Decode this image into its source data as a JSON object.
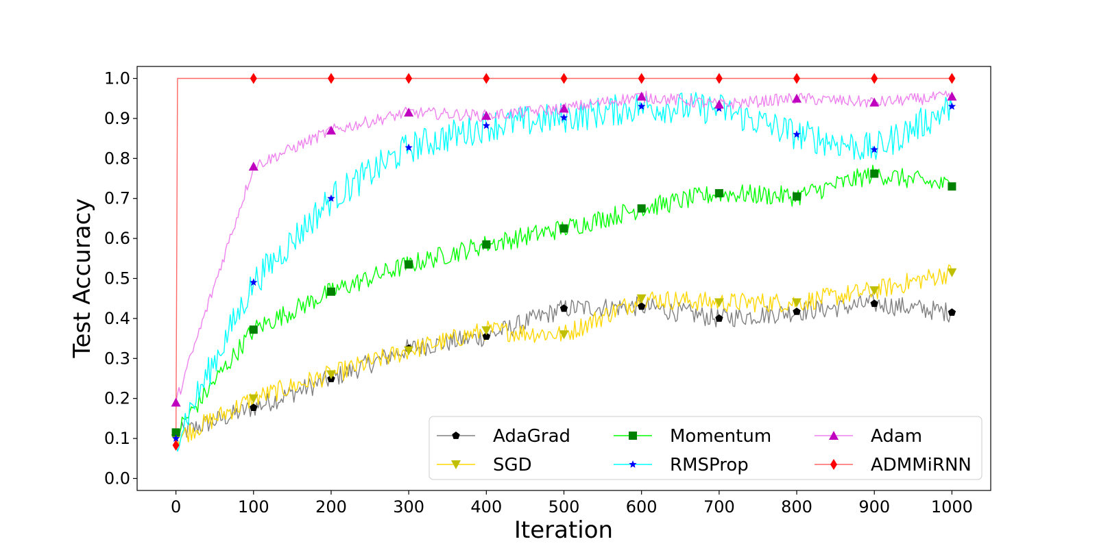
{
  "chart_data": {
    "type": "line",
    "xlabel": "Iteration",
    "ylabel": "Test Accuracy",
    "xlim": [
      -50,
      1050
    ],
    "ylim": [
      -0.03,
      1.03
    ],
    "xticks": [
      0,
      100,
      200,
      300,
      400,
      500,
      600,
      700,
      800,
      900,
      1000
    ],
    "xtick_labels": [
      "0",
      "100",
      "200",
      "300",
      "400",
      "500",
      "600",
      "700",
      "800",
      "900",
      "1000"
    ],
    "yticks": [
      0.0,
      0.1,
      0.2,
      0.3,
      0.4,
      0.5,
      0.6,
      0.7,
      0.8,
      0.9,
      1.0
    ],
    "ytick_labels": [
      "0.0",
      "0.1",
      "0.2",
      "0.3",
      "0.4",
      "0.5",
      "0.6",
      "0.7",
      "0.8",
      "0.9",
      "1.0"
    ],
    "grid": false,
    "legend": {
      "placement": "lower-right",
      "columns": 3
    },
    "x": [
      0,
      100,
      200,
      300,
      400,
      500,
      600,
      700,
      800,
      900,
      1000
    ],
    "series": [
      {
        "name": "AdaGrad",
        "line_color": "#808080",
        "marker": "pentagon",
        "marker_color": "#000000",
        "noise": 0.025,
        "values": [
          0.11,
          0.177,
          0.249,
          0.325,
          0.355,
          0.425,
          0.43,
          0.4,
          0.417,
          0.437,
          0.415
        ]
      },
      {
        "name": "SGD",
        "line_color": "#FFD700",
        "marker": "triangle-down",
        "marker_color": "#BFBF00",
        "noise": 0.025,
        "values": [
          0.1,
          0.2,
          0.26,
          0.32,
          0.37,
          0.36,
          0.45,
          0.44,
          0.44,
          0.47,
          0.515
        ]
      },
      {
        "name": "Momentum",
        "line_color": "#00FF00",
        "marker": "square",
        "marker_color": "#008000",
        "noise": 0.025,
        "values": [
          0.115,
          0.372,
          0.467,
          0.535,
          0.585,
          0.625,
          0.675,
          0.713,
          0.705,
          0.762,
          0.73
        ]
      },
      {
        "name": "RMSProp",
        "line_color": "#00FFFF",
        "marker": "star",
        "marker_color": "#0000FF",
        "noise": 0.04,
        "values": [
          0.1,
          0.49,
          0.7,
          0.827,
          0.882,
          0.902,
          0.93,
          0.925,
          0.86,
          0.822,
          0.93
        ]
      },
      {
        "name": "Adam",
        "line_color": "#EE82EE",
        "marker": "triangle-up",
        "marker_color": "#BF00BF",
        "noise": 0.015,
        "values": [
          0.19,
          0.78,
          0.87,
          0.915,
          0.907,
          0.925,
          0.955,
          0.935,
          0.95,
          0.94,
          0.955
        ]
      },
      {
        "name": "ADMMiRNN",
        "line_color": "#FF6666",
        "marker": "diamond",
        "marker_color": "#FF0000",
        "noise": 0,
        "values": [
          0.083,
          1.0,
          1.0,
          1.0,
          1.0,
          1.0,
          1.0,
          1.0,
          1.0,
          1.0,
          1.0
        ]
      }
    ]
  }
}
